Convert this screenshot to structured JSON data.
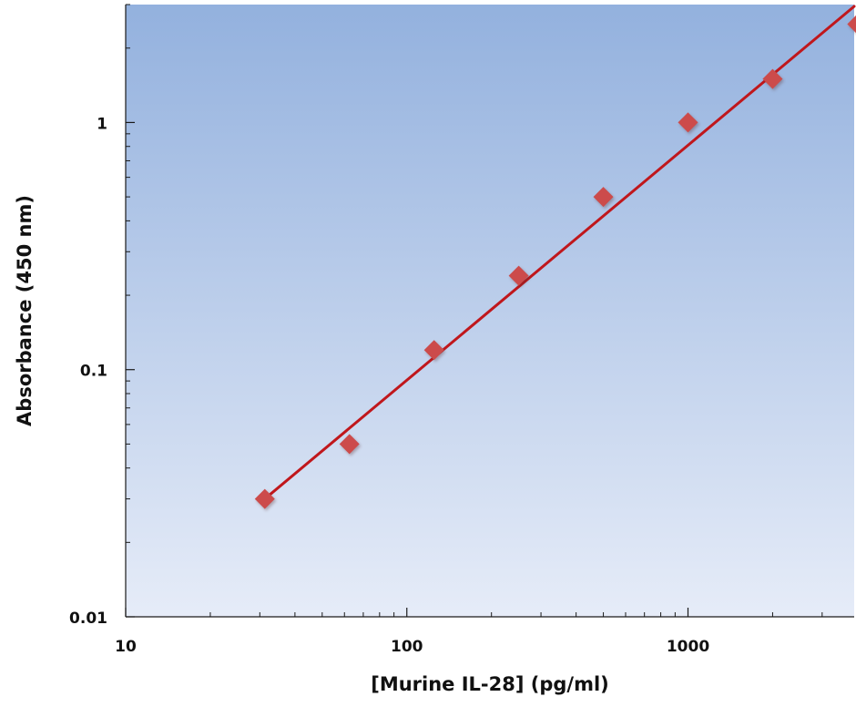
{
  "chart_data": {
    "type": "scatter",
    "title": "",
    "xlabel": "[Murine IL-28] (pg/ml)",
    "ylabel": "Absorbance (450 nm)",
    "x_scale": "log",
    "y_scale": "log",
    "xlim": [
      10,
      3900
    ],
    "ylim": [
      0.01,
      3
    ],
    "x_ticks": [
      {
        "value": 10,
        "label": "10"
      },
      {
        "value": 100,
        "label": "100"
      },
      {
        "value": 1000,
        "label": "1000"
      }
    ],
    "y_ticks": [
      {
        "value": 0.01,
        "label": "0.01"
      },
      {
        "value": 0.1,
        "label": "0.1"
      },
      {
        "value": 1,
        "label": "1"
      }
    ],
    "grid": false,
    "legend": "none",
    "series": [
      {
        "kind": "points",
        "marker": "diamond",
        "x": [
          31.25,
          62.5,
          125,
          250,
          500,
          1000,
          2000,
          4000
        ],
        "y": [
          0.03,
          0.05,
          0.12,
          0.24,
          0.5,
          1.0,
          1.5,
          2.5
        ]
      },
      {
        "kind": "fit-line",
        "x": [
          31.25,
          3900
        ],
        "y": [
          0.03,
          2.95
        ]
      }
    ],
    "colors": {
      "marker": "#cc4b4b",
      "line": "#c0171c",
      "plot_bg_top": "#93b1de",
      "plot_bg_bottom": "#e6ecf8",
      "axis": "#1a1a1a"
    }
  }
}
